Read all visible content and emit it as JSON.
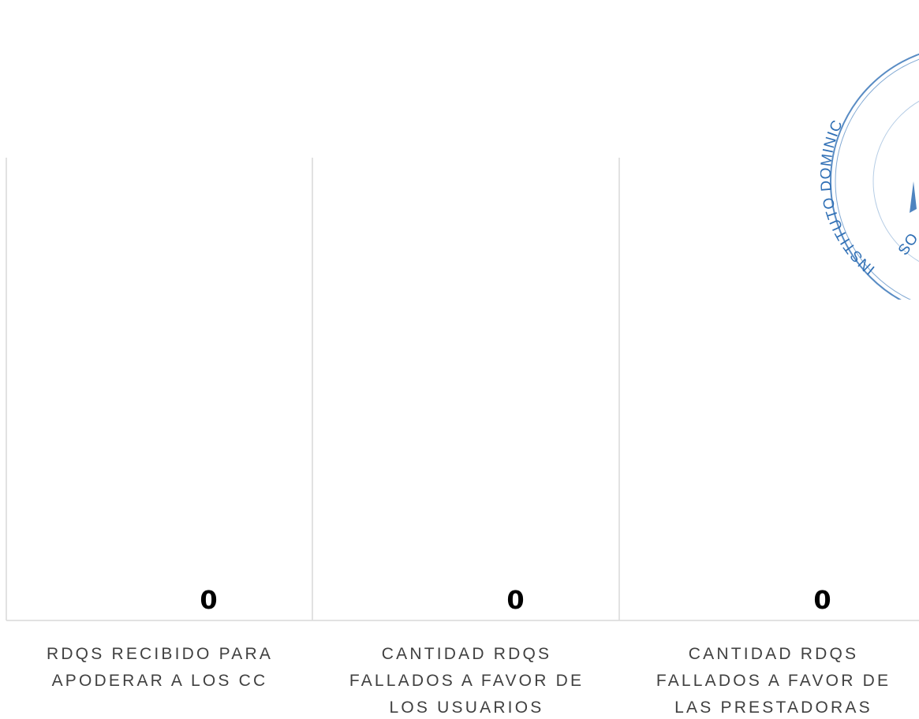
{
  "chart_data": {
    "type": "bar",
    "categories": [
      [
        "RDQS RECIBIDO PARA",
        "APODERAR A LOS CC"
      ],
      [
        "CANTIDAD RDQS",
        "FALLADOS A FAVOR DE",
        "LOS USUARIOS"
      ],
      [
        "CANTIDAD RDQS",
        "FALLADOS A FAVOR DE",
        "LAS PRESTADORAS"
      ]
    ],
    "values": [
      0,
      0,
      0
    ],
    "data_labels": [
      "0",
      "0",
      "0"
    ],
    "title": "",
    "xlabel": "",
    "ylabel": "",
    "grid": false,
    "legend": "none"
  },
  "stamp": {
    "text": "INSTITUTO DOMINIC",
    "fragment": "SO",
    "color": "#2f6fb5"
  },
  "colors": {
    "gridline": "#d9d9d9",
    "category_text": "#404040",
    "value_text": "#000000"
  }
}
